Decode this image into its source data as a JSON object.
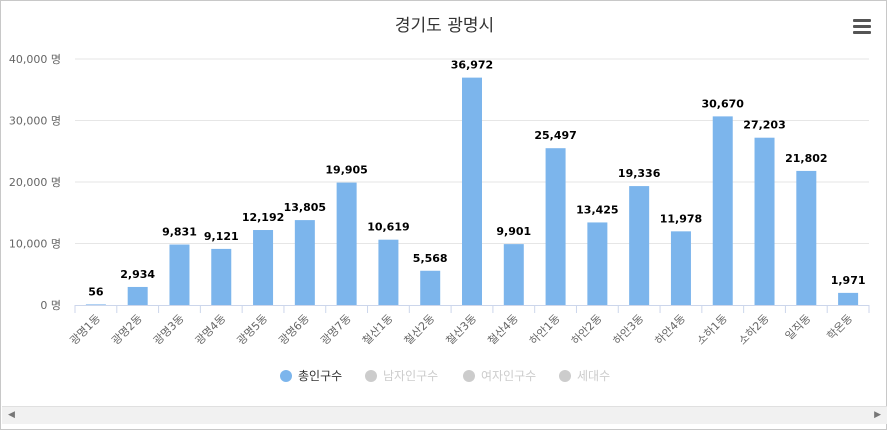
{
  "title": "경기도 광명시",
  "legend": [
    {
      "label": "총인구수",
      "active": true,
      "color": "#7cb5ec"
    },
    {
      "label": "남자인구수",
      "active": false,
      "color": "#cccccc"
    },
    {
      "label": "여자인구수",
      "active": false,
      "color": "#cccccc"
    },
    {
      "label": "세대수",
      "active": false,
      "color": "#cccccc"
    }
  ],
  "colors": {
    "bar": "#7cb5ec",
    "grid": "#e6e6e6",
    "axis": "#ccd6eb",
    "inactive_text": "#cccccc",
    "active_text": "#333333"
  },
  "icons": {
    "menu": "hamburger-menu-icon",
    "scroll_left": "arrow-left-icon",
    "scroll_right": "arrow-right-icon"
  },
  "chart_data": {
    "type": "bar",
    "categories": [
      "광명1동",
      "광명2동",
      "광명3동",
      "광명4동",
      "광명5동",
      "광명6동",
      "광명7동",
      "철산1동",
      "철산2동",
      "철산3동",
      "철산4동",
      "하안1동",
      "하안2동",
      "하안3동",
      "하안4동",
      "소하1동",
      "소하2동",
      "일직동",
      "학온동"
    ],
    "series": [
      {
        "name": "총인구수",
        "values": [
          56,
          2934,
          9831,
          9121,
          12192,
          13805,
          19905,
          10619,
          5568,
          36972,
          9901,
          25497,
          13425,
          19336,
          11978,
          30670,
          27203,
          21802,
          1971
        ]
      }
    ],
    "data_labels": [
      "56",
      "2,934",
      "9,831",
      "9,121",
      "12,192",
      "13,805",
      "19,905",
      "10,619",
      "5,568",
      "36,972",
      "9,901",
      "25,497",
      "13,425",
      "19,336",
      "11,978",
      "30,670",
      "27,203",
      "21,802",
      "1,971"
    ],
    "yticks": [
      0,
      10000,
      20000,
      30000,
      40000
    ],
    "ytick_labels": [
      "0 명",
      "10,000 명",
      "20,000 명",
      "30,000 명",
      "40,000 명"
    ],
    "ylim": [
      0,
      40000
    ],
    "grid": true,
    "legend_position": "bottom"
  }
}
